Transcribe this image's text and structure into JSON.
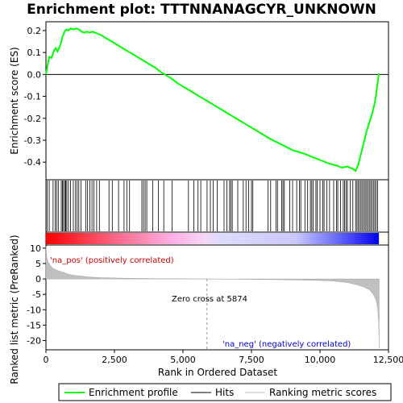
{
  "chart_data": {
    "type": "line",
    "title": "Enrichment plot: TTTNNANAGCYR_UNKNOWN",
    "top_panel": {
      "ylabel": "Enrichment score (ES)",
      "ylim": [
        -0.48,
        0.24
      ],
      "yticks": [
        0.2,
        0.1,
        0.0,
        -0.1,
        -0.2,
        -0.3,
        -0.4
      ],
      "ytick_labels": [
        "0.2",
        "0.1",
        "0.0",
        "-0.1",
        "-0.2",
        "-0.3",
        "-0.4"
      ],
      "series": [
        {
          "name": "Enrichment profile",
          "color": "#00ff00",
          "x": [
            0,
            60,
            120,
            200,
            300,
            360,
            420,
            480,
            540,
            600,
            650,
            700,
            760,
            820,
            900,
            1000,
            1100,
            1200,
            1300,
            1400,
            1500,
            1600,
            1700,
            1800,
            1900,
            2000,
            2200,
            2400,
            2600,
            2800,
            3000,
            3200,
            3400,
            3600,
            3800,
            4000,
            4200,
            4400,
            4600,
            4800,
            5000,
            5200,
            5400,
            5600,
            5874,
            6200,
            6600,
            7000,
            7400,
            7800,
            8200,
            8600,
            9000,
            9400,
            9700,
            10000,
            10300,
            10600,
            10800,
            11000,
            11200,
            11300,
            11400,
            11500,
            11600,
            11700,
            11800,
            11900,
            12000,
            12050,
            12100,
            12150
          ],
          "y": [
            0.0,
            0.04,
            0.08,
            0.075,
            0.11,
            0.12,
            0.105,
            0.12,
            0.14,
            0.17,
            0.185,
            0.2,
            0.205,
            0.2,
            0.21,
            0.205,
            0.21,
            0.205,
            0.195,
            0.19,
            0.195,
            0.19,
            0.195,
            0.19,
            0.185,
            0.18,
            0.165,
            0.15,
            0.135,
            0.12,
            0.105,
            0.09,
            0.075,
            0.06,
            0.045,
            0.03,
            0.01,
            -0.005,
            -0.02,
            -0.04,
            -0.055,
            -0.07,
            -0.085,
            -0.1,
            -0.12,
            -0.145,
            -0.175,
            -0.205,
            -0.235,
            -0.265,
            -0.295,
            -0.32,
            -0.345,
            -0.36,
            -0.375,
            -0.39,
            -0.405,
            -0.415,
            -0.425,
            -0.42,
            -0.43,
            -0.44,
            -0.41,
            -0.36,
            -0.31,
            -0.26,
            -0.22,
            -0.18,
            -0.13,
            -0.09,
            -0.04,
            0.005
          ]
        }
      ]
    },
    "hits_panel": {
      "name": "Hits",
      "positions": [
        50,
        120,
        260,
        340,
        390,
        450,
        560,
        600,
        640,
        690,
        720,
        760,
        820,
        900,
        1000,
        1080,
        1140,
        1200,
        1280,
        1450,
        1520,
        1600,
        1680,
        1750,
        1850,
        1950,
        2300,
        2420,
        2650,
        2850,
        2950,
        3050,
        3500,
        3560,
        3620,
        3680,
        3900,
        4100,
        4300,
        4600,
        5200,
        5400,
        5550,
        5650,
        5880,
        6000,
        6100,
        6250,
        6500,
        6600,
        6700,
        6750,
        6800,
        7000,
        7200,
        7300,
        7400,
        7500,
        7550,
        8100,
        8200,
        8400,
        8450,
        8600,
        8650,
        8700,
        8900,
        9000,
        9150,
        9250,
        9300,
        9450,
        9550,
        9650,
        9700,
        9750,
        9850,
        9900,
        10000,
        10100,
        10150,
        10250,
        10350,
        10500,
        10600,
        10650,
        10750,
        10850,
        10900,
        10950,
        11000,
        11100,
        11200,
        11300,
        11350,
        11400,
        11450,
        11500,
        11550,
        11600,
        11650,
        11700,
        11750,
        11800,
        11850,
        11900,
        11950,
        12000,
        12050,
        12100
      ]
    },
    "bottom_panel": {
      "ylabel": "Ranked list metric (PreRanked)",
      "xlabel": "Rank in Ordered Dataset",
      "ylim": [
        -23,
        11
      ],
      "yticks": [
        10,
        5,
        0,
        -5,
        -10,
        -15,
        -20
      ],
      "ytick_labels": [
        "10",
        "5",
        "0",
        "-5",
        "-10",
        "-15",
        "-20"
      ],
      "xlim": [
        0,
        12500
      ],
      "xticks": [
        0,
        2500,
        5000,
        7500,
        10000,
        12500
      ],
      "xtick_labels": [
        "0",
        "2,500",
        "5,000",
        "7,500",
        "10,000",
        "12,500"
      ],
      "series": [
        {
          "name": "Ranking metric scores",
          "color": "#c0c0c0",
          "x": [
            0,
            30,
            80,
            150,
            250,
            400,
            600,
            800,
            1000,
            1300,
            1600,
            2000,
            2500,
            3000,
            4000,
            5000,
            5874,
            7000,
            8000,
            9000,
            10000,
            10500,
            11000,
            11300,
            11600,
            11800,
            11950,
            12050,
            12100,
            12140,
            12160
          ],
          "y": [
            10.5,
            7.0,
            5.5,
            4.5,
            3.5,
            2.8,
            2.2,
            1.6,
            1.2,
            0.9,
            0.6,
            0.4,
            0.3,
            0.2,
            0.1,
            0.05,
            0.0,
            -0.1,
            -0.2,
            -0.3,
            -0.5,
            -0.7,
            -1.2,
            -1.8,
            -2.6,
            -3.5,
            -5.0,
            -7.0,
            -9.0,
            -14.0,
            -22.5
          ]
        }
      ],
      "zero_cross": 5874,
      "annotations": {
        "pos": "'na_pos' (positively correlated)",
        "neg": "'na_neg' (negatively correlated)",
        "zero": "Zero cross at 5874"
      }
    },
    "legend": {
      "placement": "bottom",
      "entries": [
        "Enrichment profile",
        "Hits",
        "Ranking metric scores"
      ]
    },
    "colors": {
      "profile": "#00ff00",
      "hits": "#000000",
      "metric": "#c0c0c0",
      "pos": "#ff0000",
      "neg": "#0000ff"
    }
  }
}
